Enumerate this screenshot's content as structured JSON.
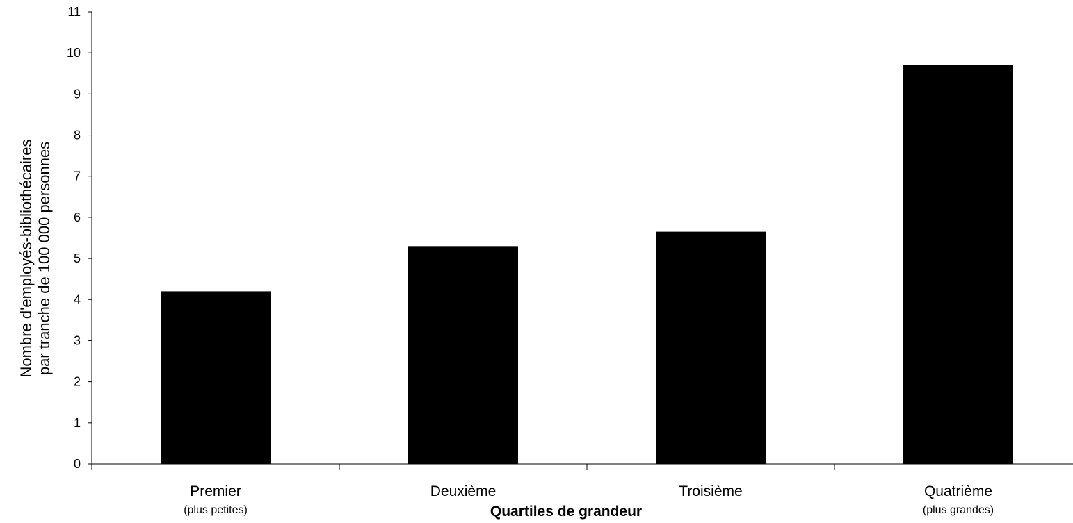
{
  "chart_data": {
    "type": "bar",
    "categories": [
      "Premier",
      "Deuxième",
      "Troisième",
      "Quatrième"
    ],
    "category_sublabels": [
      "(plus petites)",
      "",
      "",
      "(plus grandes)"
    ],
    "values": [
      4.2,
      5.3,
      5.65,
      9.7
    ],
    "ylabel": [
      "Nombre d'employés-bibliothécaires",
      "par tranche de 100 000 personnes"
    ],
    "xlabel": "Quartiles de grandeur",
    "ylim": [
      0,
      11
    ],
    "yticks": [
      0,
      1,
      2,
      3,
      4,
      5,
      6,
      7,
      8,
      9,
      10,
      11
    ],
    "grid": false,
    "bar_color": "#000000"
  }
}
